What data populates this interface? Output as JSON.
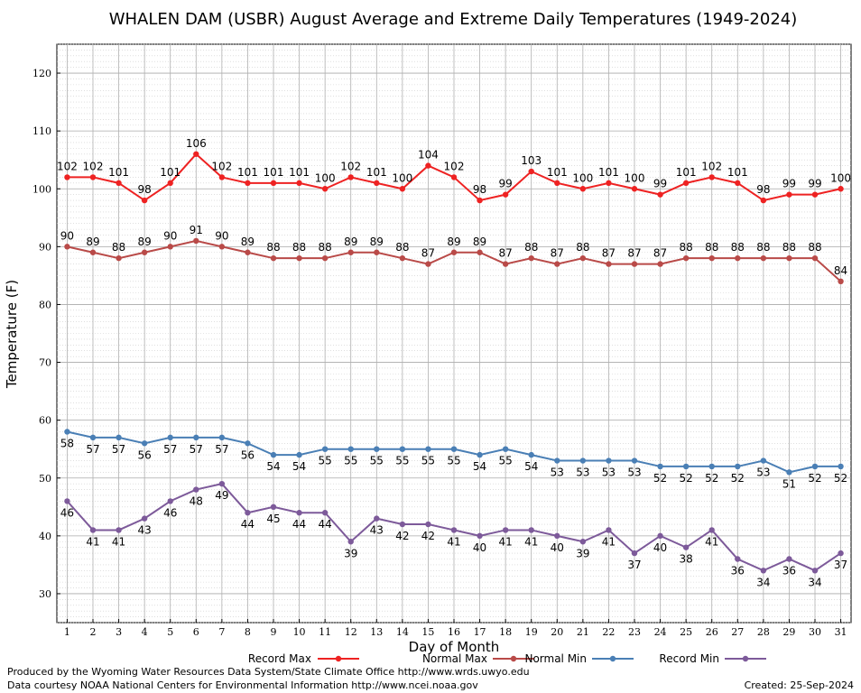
{
  "chart_data": {
    "type": "line",
    "title": "WHALEN DAM (USBR) August Average and Extreme Daily Temperatures (1949-2024)",
    "xlabel": "Day of Month",
    "ylabel": "Temperature (F)",
    "x": [
      1,
      2,
      3,
      4,
      5,
      6,
      7,
      8,
      9,
      10,
      11,
      12,
      13,
      14,
      15,
      16,
      17,
      18,
      19,
      20,
      21,
      22,
      23,
      24,
      25,
      26,
      27,
      28,
      29,
      30,
      31
    ],
    "xlim": [
      0.6,
      31.4
    ],
    "ylim": [
      25,
      125
    ],
    "yticks": [
      30,
      40,
      50,
      60,
      70,
      80,
      90,
      100,
      110,
      120
    ],
    "grid": true,
    "legend_position": "bottom",
    "series": [
      {
        "name": "Record Max",
        "color": "#ee2222",
        "label_pos": "above",
        "values": [
          102,
          102,
          101,
          98,
          101,
          106,
          102,
          101,
          101,
          101,
          100,
          102,
          101,
          100,
          104,
          102,
          98,
          99,
          103,
          101,
          100,
          101,
          100,
          99,
          101,
          102,
          101,
          98,
          99,
          99,
          100
        ]
      },
      {
        "name": "Normal Max",
        "color": "#b94a48",
        "label_pos": "above",
        "values": [
          90,
          89,
          88,
          89,
          90,
          91,
          90,
          89,
          88,
          88,
          88,
          89,
          89,
          88,
          87,
          89,
          89,
          87,
          88,
          87,
          88,
          87,
          87,
          87,
          88,
          88,
          88,
          88,
          88,
          88,
          84
        ]
      },
      {
        "name": "Normal Min",
        "color": "#4a7fb5",
        "label_pos": "below",
        "values": [
          58,
          57,
          57,
          56,
          57,
          57,
          57,
          56,
          54,
          54,
          55,
          55,
          55,
          55,
          55,
          55,
          54,
          55,
          54,
          53,
          53,
          53,
          53,
          52,
          52,
          52,
          52,
          53,
          51,
          52,
          52
        ]
      },
      {
        "name": "Record Min",
        "color": "#7d5a9a",
        "label_pos": "below",
        "values": [
          46,
          41,
          41,
          43,
          46,
          48,
          49,
          44,
          45,
          44,
          44,
          39,
          43,
          42,
          42,
          41,
          40,
          41,
          41,
          40,
          39,
          41,
          37,
          40,
          38,
          41,
          36,
          34,
          36,
          34,
          37
        ]
      }
    ]
  },
  "footer": {
    "produced_by": "Produced by the Wyoming Water Resources Data System/State Climate Office http://www.wrds.uwyo.edu",
    "data_courtesy": "Data courtesy NOAA National Centers for Environmental Information http://www.ncei.noaa.gov",
    "created": "Created:  25-Sep-2024"
  }
}
